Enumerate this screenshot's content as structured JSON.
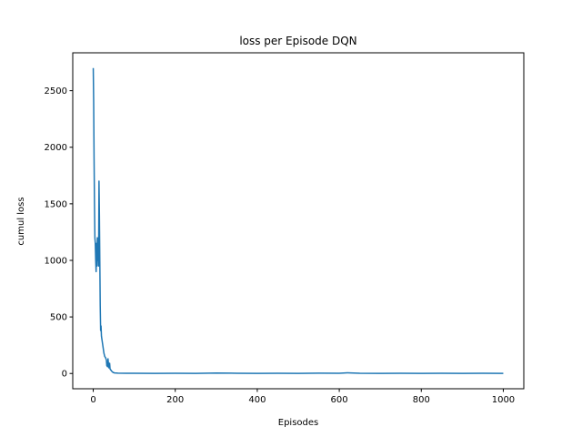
{
  "chart_data": {
    "type": "line",
    "title": "loss per Episode DQN",
    "xlabel": "Episodes",
    "ylabel": "cumul loss",
    "xlim": [
      -50,
      1050
    ],
    "ylim": [
      -135,
      2835
    ],
    "x_ticks": [
      0,
      200,
      400,
      600,
      800,
      1000
    ],
    "y_ticks": [
      0,
      500,
      1000,
      1500,
      2000,
      2500
    ],
    "grid": false,
    "series": [
      {
        "color": "#1f77b4",
        "points": [
          [
            0,
            2700
          ],
          [
            1,
            2400
          ],
          [
            2,
            1900
          ],
          [
            3,
            1500
          ],
          [
            4,
            1200
          ],
          [
            5,
            1150
          ],
          [
            6,
            1000
          ],
          [
            7,
            900
          ],
          [
            8,
            1150
          ],
          [
            9,
            950
          ],
          [
            10,
            1200
          ],
          [
            11,
            1000
          ],
          [
            12,
            1150
          ],
          [
            13,
            950
          ],
          [
            14,
            1700
          ],
          [
            15,
            1400
          ],
          [
            16,
            1000
          ],
          [
            17,
            600
          ],
          [
            18,
            380
          ],
          [
            19,
            420
          ],
          [
            20,
            330
          ],
          [
            22,
            280
          ],
          [
            24,
            230
          ],
          [
            26,
            180
          ],
          [
            28,
            150
          ],
          [
            30,
            140
          ],
          [
            32,
            120
          ],
          [
            33,
            70
          ],
          [
            35,
            60
          ],
          [
            36,
            130
          ],
          [
            38,
            50
          ],
          [
            40,
            90
          ],
          [
            41,
            40
          ],
          [
            43,
            30
          ],
          [
            45,
            20
          ],
          [
            48,
            10
          ],
          [
            52,
            5
          ],
          [
            60,
            3
          ],
          [
            80,
            2
          ],
          [
            100,
            2
          ],
          [
            150,
            1
          ],
          [
            200,
            2
          ],
          [
            250,
            1
          ],
          [
            300,
            4
          ],
          [
            350,
            2
          ],
          [
            400,
            1
          ],
          [
            450,
            2
          ],
          [
            500,
            1
          ],
          [
            550,
            3
          ],
          [
            600,
            2
          ],
          [
            620,
            6
          ],
          [
            650,
            2
          ],
          [
            700,
            1
          ],
          [
            750,
            2
          ],
          [
            800,
            1
          ],
          [
            850,
            2
          ],
          [
            900,
            1
          ],
          [
            950,
            2
          ],
          [
            1000,
            1
          ]
        ]
      }
    ]
  }
}
